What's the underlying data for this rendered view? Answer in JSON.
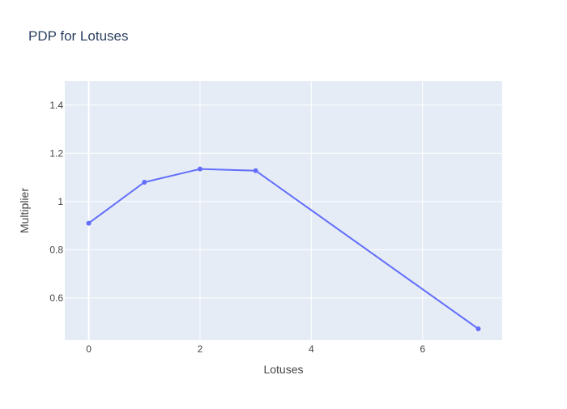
{
  "chart_data": {
    "type": "line",
    "title": "PDP for Lotuses",
    "xlabel": "Lotuses",
    "ylabel": "Multiplier",
    "x": [
      0,
      1,
      2,
      3,
      7
    ],
    "series": [
      {
        "values": [
          0.91,
          1.08,
          1.135,
          1.128,
          0.472
        ],
        "color": "#636efa"
      }
    ],
    "xlim": [
      -0.43,
      7.43
    ],
    "ylim": [
      0.425,
      1.5
    ],
    "xticks": [
      0,
      2,
      4,
      6
    ],
    "xtick_labels": [
      "0",
      "2",
      "4",
      "6"
    ],
    "yticks": [
      0.6,
      0.8,
      1.0,
      1.2,
      1.4
    ],
    "ytick_labels": [
      "0.6",
      "0.8",
      "1",
      "1.2",
      "1.4"
    ],
    "grid": true,
    "plot_background": "#e5ecf6",
    "grid_color": "#ffffff",
    "text_color": "#444444",
    "title_color": "#2a3f5f"
  }
}
